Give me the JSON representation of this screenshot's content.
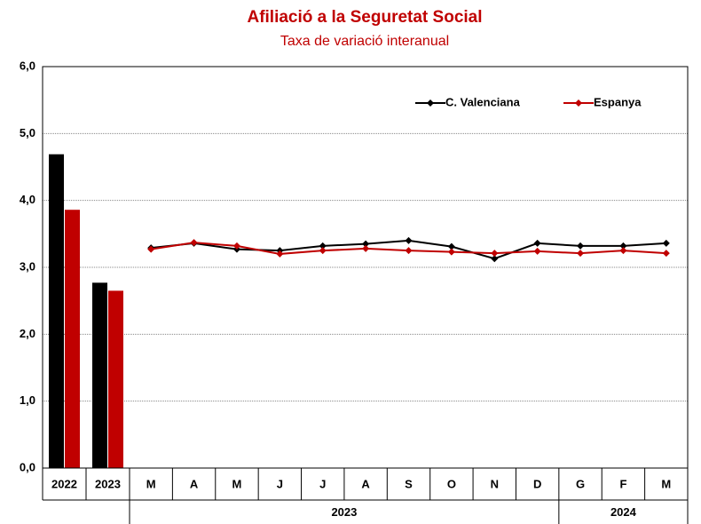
{
  "chart_data": {
    "type": "bar+line",
    "title": "Afiliació a la Seguretat Social",
    "subtitle": "Taxa de variació interanual",
    "bar_categories": [
      "2022",
      "2023"
    ],
    "groups": [
      {
        "label": "2023",
        "categories": [
          "M",
          "A",
          "M",
          "J",
          "J",
          "A",
          "S",
          "O",
          "N",
          "D"
        ]
      },
      {
        "label": "2024",
        "categories": [
          "G",
          "F",
          "M"
        ]
      }
    ],
    "series": [
      {
        "name": "C. Valenciana",
        "color": "#000000",
        "bar_values": [
          4.69,
          2.77
        ],
        "values": [
          3.29,
          3.36,
          3.27,
          3.25,
          3.32,
          3.35,
          3.4,
          3.31,
          3.13,
          3.36,
          3.32,
          3.32,
          3.36
        ]
      },
      {
        "name": "Espanya",
        "color": "#c00000",
        "bar_values": [
          3.86,
          2.65
        ],
        "values": [
          3.27,
          3.37,
          3.32,
          3.2,
          3.25,
          3.28,
          3.25,
          3.23,
          3.21,
          3.24,
          3.21,
          3.25,
          3.21
        ]
      }
    ],
    "ylim": [
      0,
      6
    ],
    "yticks": [
      {
        "value": 0,
        "label": "0,0"
      },
      {
        "value": 1,
        "label": "1,0"
      },
      {
        "value": 2,
        "label": "2,0"
      },
      {
        "value": 3,
        "label": "3,0"
      },
      {
        "value": 4,
        "label": "4,0"
      },
      {
        "value": 5,
        "label": "5,0"
      },
      {
        "value": 6,
        "label": "6,0"
      }
    ],
    "grid": true,
    "legend": "top-right"
  }
}
